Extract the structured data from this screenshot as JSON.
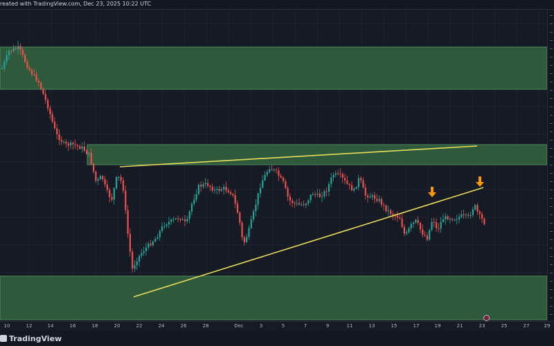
{
  "topbar": {
    "text": "reated with TradingView.com, Dec 23, 2025 10:22 UTC"
  },
  "bottombar": {
    "logo_text": "TradingView"
  },
  "time_axis": {
    "ticks": [
      "10",
      "12",
      "14",
      "16",
      "18",
      "20",
      "22",
      "24",
      "26",
      "28",
      "Dec",
      "3",
      "5",
      "7",
      "9",
      "11",
      "13",
      "15",
      "17",
      "19",
      "21",
      "23",
      "25",
      "27",
      "29"
    ]
  },
  "colors": {
    "bull": "#26a69a",
    "bear": "#ef5350",
    "zone": "#2e5a3b",
    "zone_border": "#4f8a5e",
    "trendline": "#e7dd5a",
    "arrow": "#ff9800"
  },
  "annotations": {
    "arrows": 2,
    "zones": 3,
    "trendlines": 2
  }
}
